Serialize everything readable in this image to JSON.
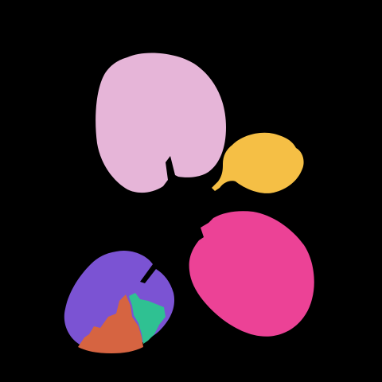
{
  "background_color": "#000000",
  "segments": [
    {
      "name": "leaf-top-left",
      "color": "#E6B5D8"
    },
    {
      "name": "leaf-top-right-small",
      "color": "#F5BF45"
    },
    {
      "name": "leaf-bottom-right",
      "color": "#EC4296"
    },
    {
      "name": "leaf-bottom-left",
      "color": "#7B53D3"
    },
    {
      "name": "leaf-bottom-left-lower-segment",
      "color": "#D66441"
    },
    {
      "name": "leaf-bottom-left-middle-segment",
      "color": "#2FC192"
    }
  ]
}
